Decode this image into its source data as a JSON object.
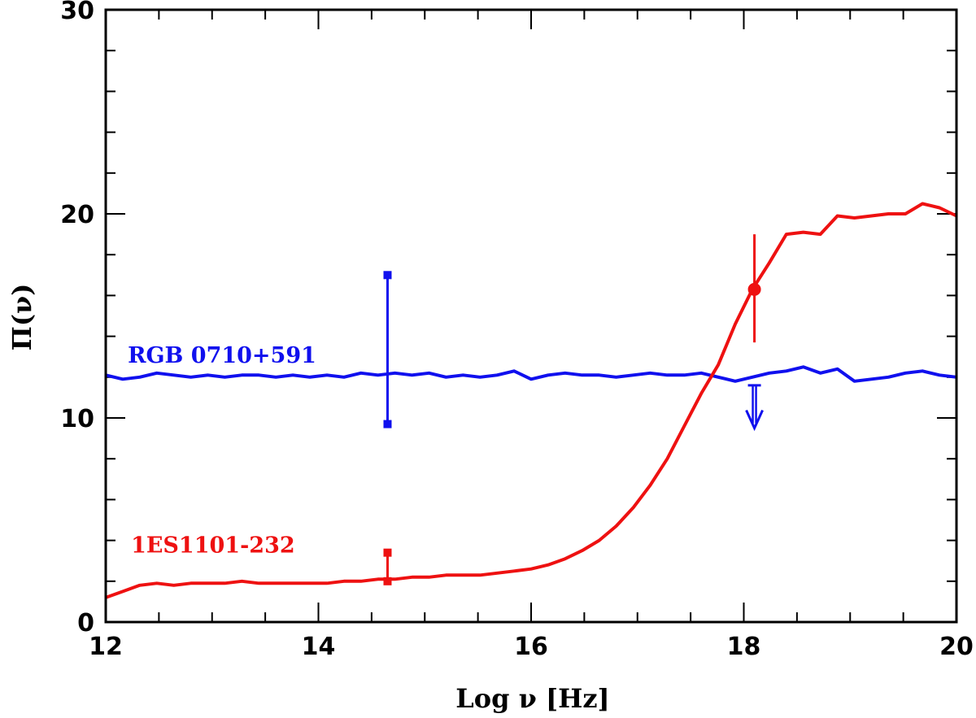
{
  "chart_data": {
    "type": "line",
    "title": "",
    "xlabel": "Log ν [Hz]",
    "ylabel": "Π(ν)",
    "xlim": [
      12,
      20
    ],
    "ylim": [
      0,
      30
    ],
    "x_ticks": [
      12,
      14,
      16,
      18,
      20
    ],
    "x_tick_labels": [
      "12",
      "14",
      "16",
      "18",
      "20"
    ],
    "y_ticks": [
      0,
      10,
      20,
      30
    ],
    "y_tick_labels": [
      "0",
      "10",
      "20",
      "30"
    ],
    "grid": false,
    "series": [
      {
        "name": "RGB 0710+591",
        "color": "#1010ee",
        "x": [
          12.0,
          12.16,
          12.32,
          12.48,
          12.64,
          12.8,
          12.96,
          13.12,
          13.28,
          13.44,
          13.6,
          13.76,
          13.92,
          14.08,
          14.24,
          14.4,
          14.56,
          14.72,
          14.88,
          15.04,
          15.2,
          15.36,
          15.52,
          15.68,
          15.84,
          16.0,
          16.16,
          16.32,
          16.48,
          16.64,
          16.8,
          16.96,
          17.12,
          17.28,
          17.44,
          17.6,
          17.76,
          17.92,
          18.08,
          18.24,
          18.4,
          18.56,
          18.72,
          18.88,
          19.04,
          19.2,
          19.36,
          19.52,
          19.68,
          19.84,
          20.0
        ],
        "y": [
          12.1,
          11.9,
          12.0,
          12.2,
          12.1,
          12.0,
          12.1,
          12.0,
          12.1,
          12.1,
          12.0,
          12.1,
          12.0,
          12.1,
          12.0,
          12.2,
          12.1,
          12.2,
          12.1,
          12.2,
          12.0,
          12.1,
          12.0,
          12.1,
          12.3,
          11.9,
          12.1,
          12.2,
          12.1,
          12.1,
          12.0,
          12.1,
          12.2,
          12.1,
          12.1,
          12.2,
          12.0,
          11.8,
          12.0,
          12.2,
          12.3,
          12.5,
          12.2,
          12.4,
          11.8,
          11.9,
          12.0,
          12.2,
          12.3,
          12.1,
          12.0
        ]
      },
      {
        "name": "1ES1101-232",
        "color": "#ee1111",
        "x": [
          12.0,
          12.16,
          12.32,
          12.48,
          12.64,
          12.8,
          12.96,
          13.12,
          13.28,
          13.44,
          13.6,
          13.76,
          13.92,
          14.08,
          14.24,
          14.4,
          14.56,
          14.72,
          14.88,
          15.04,
          15.2,
          15.36,
          15.52,
          15.68,
          15.84,
          16.0,
          16.16,
          16.32,
          16.48,
          16.64,
          16.8,
          16.96,
          17.12,
          17.28,
          17.44,
          17.6,
          17.76,
          17.92,
          18.08,
          18.24,
          18.4,
          18.56,
          18.72,
          18.88,
          19.04,
          19.2,
          19.36,
          19.52,
          19.68,
          19.84,
          20.0
        ],
        "y": [
          1.2,
          1.5,
          1.8,
          1.9,
          1.8,
          1.9,
          1.9,
          1.9,
          2.0,
          1.9,
          1.9,
          1.9,
          1.9,
          1.9,
          2.0,
          2.0,
          2.1,
          2.1,
          2.2,
          2.2,
          2.3,
          2.3,
          2.3,
          2.4,
          2.5,
          2.6,
          2.8,
          3.1,
          3.5,
          4.0,
          4.7,
          5.6,
          6.7,
          8.0,
          9.6,
          11.2,
          12.6,
          14.6,
          16.3,
          17.6,
          19.0,
          19.1,
          19.0,
          19.9,
          19.8,
          19.9,
          20.0,
          20.0,
          20.5,
          20.3,
          19.9
        ]
      }
    ],
    "error_bars": [
      {
        "series": "RGB 0710+591",
        "x": 14.65,
        "y_low": 9.7,
        "y_high": 17.0,
        "color": "#1010ee",
        "cap": "square"
      },
      {
        "series": "1ES1101-232",
        "x": 14.65,
        "y_low": 2.0,
        "y_high": 3.4,
        "color": "#ee1111",
        "cap": "square"
      },
      {
        "series": "1ES1101-232",
        "x": 18.1,
        "y_low": 13.7,
        "y_high": 19.0,
        "y_point": 16.3,
        "color": "#ee1111",
        "cap": "dot"
      }
    ],
    "upper_limits": [
      {
        "series": "RGB 0710+591",
        "x": 18.1,
        "y_top": 11.6,
        "y_bottom": 9.5,
        "color": "#1010ee"
      }
    ],
    "annotations": [
      {
        "text": "RGB 0710+591",
        "x": 12.1,
        "y": 12.7,
        "color": "#1010ee"
      },
      {
        "text": "1ES1101-232",
        "x": 12.1,
        "y": 3.4,
        "color": "#ee1111"
      }
    ]
  }
}
